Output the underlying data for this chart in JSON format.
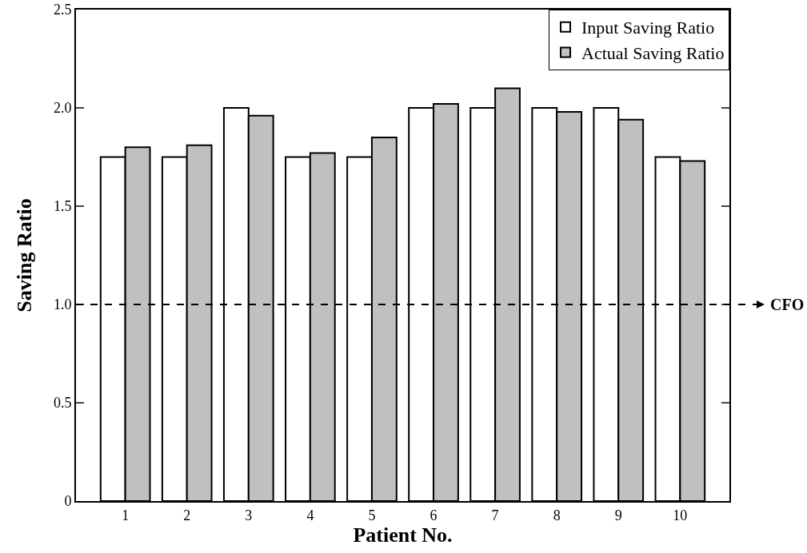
{
  "chart_data": {
    "type": "bar",
    "xlabel": "Patient No.",
    "ylabel": "Saving Ratio",
    "categories": [
      "1",
      "2",
      "3",
      "4",
      "5",
      "6",
      "7",
      "8",
      "9",
      "10"
    ],
    "series": [
      {
        "name": "Input Saving Ratio",
        "color": "#ffffff",
        "values": [
          1.75,
          1.75,
          2.0,
          1.75,
          1.75,
          2.0,
          2.0,
          2.0,
          2.0,
          1.75
        ]
      },
      {
        "name": "Actual Saving Ratio",
        "color": "#c0c0c0",
        "values": [
          1.8,
          1.81,
          1.96,
          1.77,
          1.85,
          2.02,
          2.1,
          1.98,
          1.94,
          1.73
        ]
      }
    ],
    "ylim": [
      0,
      2.5
    ],
    "yticks": [
      {
        "value": 0,
        "label": "0"
      },
      {
        "value": 0.5,
        "label": "0.5"
      },
      {
        "value": 1,
        "label": "1.0"
      },
      {
        "value": 1.5,
        "label": "1.5"
      },
      {
        "value": 2,
        "label": "2.0"
      },
      {
        "value": 2.5,
        "label": "2.5"
      }
    ],
    "ref_lines": [
      {
        "axis": "y",
        "value": 1,
        "label": "CFO",
        "color": "#000000",
        "line_style": "dashed"
      }
    ],
    "legend": "top right",
    "grid": false
  }
}
